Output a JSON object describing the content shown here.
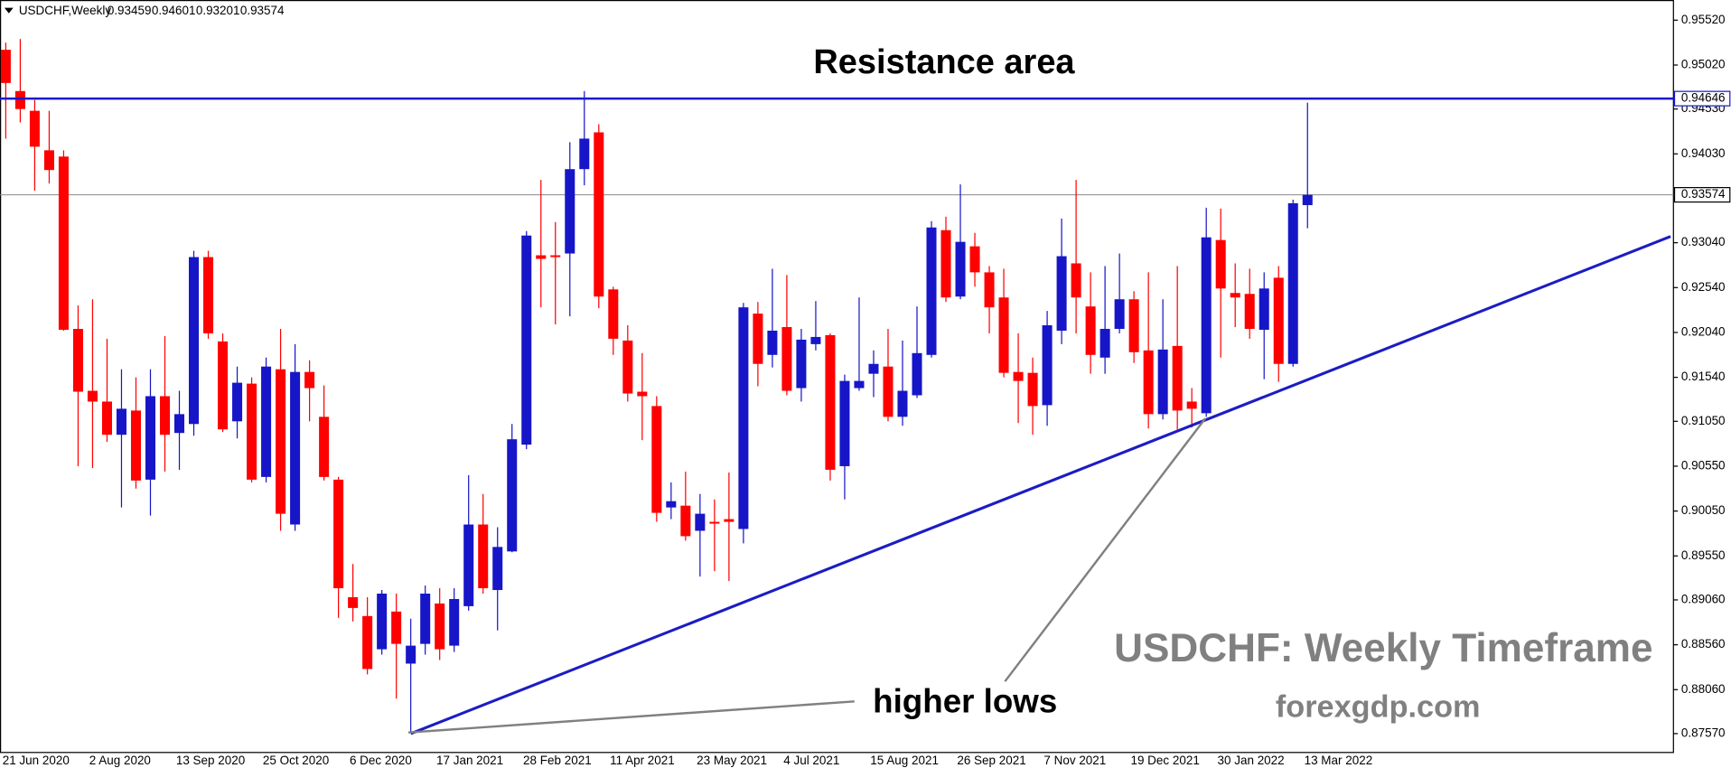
{
  "chart_data": {
    "type": "candlestick",
    "title": "USDCHF,Weekly",
    "categories": [
      "21 Jun 2020",
      null,
      null,
      null,
      null,
      null,
      "2 Aug 2020",
      null,
      null,
      null,
      null,
      null,
      "13 Sep 2020",
      null,
      null,
      null,
      null,
      null,
      "25 Oct 2020",
      null,
      null,
      null,
      null,
      null,
      "6 Dec 2020",
      null,
      null,
      null,
      null,
      null,
      "17 Jan 2021",
      null,
      null,
      null,
      null,
      null,
      "28 Feb 2021",
      null,
      null,
      null,
      null,
      null,
      "11 Apr 2021",
      null,
      null,
      null,
      null,
      null,
      "23 May 2021",
      null,
      null,
      null,
      null,
      null,
      "4 Jul 2021",
      null,
      null,
      null,
      null,
      null,
      "15 Aug 2021",
      null,
      null,
      null,
      null,
      null,
      "26 Sep 2021",
      null,
      null,
      null,
      null,
      null,
      "7 Nov 2021",
      null,
      null,
      null,
      null,
      null,
      "19 Dec 2021",
      null,
      null,
      null,
      null,
      null,
      "30 Jan 2022",
      null,
      null,
      null,
      null,
      null,
      "13 Mar 2022"
    ],
    "open": [
      0.9519,
      0.9473,
      0.9451,
      0.9407,
      0.94,
      0.9208,
      0.9139,
      0.9127,
      0.909,
      0.9117,
      0.904,
      0.9133,
      0.9092,
      0.9102,
      0.9288,
      0.9194,
      0.9105,
      0.9147,
      0.9043,
      0.9163,
      0.899,
      0.916,
      0.911,
      0.904,
      0.8909,
      0.8888,
      0.8851,
      0.8893,
      0.8835,
      0.8857,
      0.8902,
      0.8855,
      0.8899,
      0.899,
      0.8917,
      0.896,
      0.9079,
      0.929,
      0.929,
      0.9292,
      0.9386,
      0.9427,
      0.9252,
      0.9195,
      0.9138,
      0.9122,
      0.9009,
      0.9011,
      0.8983,
      0.8993,
      0.8996,
      0.8985,
      0.9225,
      0.9179,
      0.921,
      0.9142,
      0.9191,
      0.9201,
      0.9055,
      0.9142,
      0.9158,
      0.9166,
      0.911,
      0.9134,
      0.9179,
      0.9318,
      0.9244,
      0.93,
      0.9271,
      0.9243,
      0.916,
      0.9159,
      0.9123,
      0.9206,
      0.9281,
      0.9233,
      0.9176,
      0.9208,
      0.9241,
      0.9184,
      0.9113,
      0.9189,
      0.9127,
      0.9114,
      0.9307,
      0.9248,
      0.9247,
      0.9207,
      0.9265,
      0.9169,
      0.93459
    ],
    "high": [
      0.9527,
      0.9531,
      0.9463,
      0.9451,
      0.9407,
      0.9234,
      0.9241,
      0.9197,
      0.9163,
      0.9154,
      0.9163,
      0.92,
      0.9139,
      0.9295,
      0.9295,
      0.9203,
      0.9166,
      0.9154,
      0.9176,
      0.9208,
      0.9191,
      0.9173,
      0.9145,
      0.9043,
      0.8946,
      0.8909,
      0.8917,
      0.8913,
      0.8885,
      0.8922,
      0.8919,
      0.8919,
      0.9045,
      0.9024,
      0.8987,
      0.9102,
      0.9317,
      0.9374,
      0.9327,
      0.9416,
      0.9473,
      0.9436,
      0.9255,
      0.9212,
      0.9181,
      0.9133,
      0.9037,
      0.9049,
      0.9024,
      0.9018,
      0.9048,
      0.9237,
      0.9238,
      0.9275,
      0.9268,
      0.9208,
      0.9239,
      0.9203,
      0.9157,
      0.9243,
      0.9184,
      0.9208,
      0.9195,
      0.9233,
      0.9328,
      0.9333,
      0.9369,
      0.9315,
      0.9278,
      0.9275,
      0.9203,
      0.9176,
      0.9228,
      0.9331,
      0.9374,
      0.9271,
      0.9278,
      0.9292,
      0.925,
      0.9271,
      0.9241,
      0.9278,
      0.9142,
      0.9343,
      0.9342,
      0.9281,
      0.9275,
      0.9271,
      0.9278,
      0.9352,
      0.94601
    ],
    "low": [
      0.942,
      0.9438,
      0.9362,
      0.937,
      0.9206,
      0.9055,
      0.9053,
      0.9082,
      0.9009,
      0.903,
      0.9,
      0.9049,
      0.9051,
      0.9089,
      0.9197,
      0.9093,
      0.9086,
      0.9037,
      0.9037,
      0.8983,
      0.8983,
      0.9105,
      0.9039,
      0.8886,
      0.8882,
      0.8823,
      0.8845,
      0.8796,
      0.8759,
      0.8845,
      0.8839,
      0.8848,
      0.8894,
      0.8913,
      0.8872,
      0.8959,
      0.9074,
      0.9232,
      0.9213,
      0.9222,
      0.9368,
      0.9231,
      0.9179,
      0.9127,
      0.9084,
      0.8993,
      0.8996,
      0.8972,
      0.8932,
      0.8938,
      0.8927,
      0.8969,
      0.9144,
      0.9165,
      0.9134,
      0.9127,
      0.9184,
      0.9039,
      0.9018,
      0.9139,
      0.9132,
      0.9105,
      0.91,
      0.9131,
      0.9176,
      0.9238,
      0.9241,
      0.9255,
      0.9203,
      0.9154,
      0.9103,
      0.909,
      0.91,
      0.9191,
      0.9203,
      0.9158,
      0.9158,
      0.9203,
      0.917,
      0.9097,
      0.9107,
      0.9096,
      0.9098,
      0.911,
      0.9176,
      0.921,
      0.9197,
      0.9152,
      0.9149,
      0.9166,
      0.93201
    ],
    "close": [
      0.9482,
      0.9453,
      0.9411,
      0.9385,
      0.9207,
      0.9138,
      0.9127,
      0.909,
      0.9119,
      0.9039,
      0.9133,
      0.909,
      0.9113,
      0.9288,
      0.9203,
      0.9096,
      0.9148,
      0.904,
      0.9166,
      0.9002,
      0.916,
      0.9142,
      0.9043,
      0.8919,
      0.8897,
      0.8829,
      0.8913,
      0.8857,
      0.8855,
      0.8913,
      0.8851,
      0.8907,
      0.899,
      0.8919,
      0.8965,
      0.9085,
      0.9312,
      0.9286,
      0.9288,
      0.9386,
      0.942,
      0.9244,
      0.9197,
      0.9136,
      0.9133,
      0.9003,
      0.9016,
      0.8977,
      0.9002,
      0.8991,
      0.8993,
      0.9232,
      0.9169,
      0.9206,
      0.9139,
      0.9196,
      0.9199,
      0.9051,
      0.915,
      0.915,
      0.9169,
      0.911,
      0.9139,
      0.9181,
      0.9321,
      0.9243,
      0.9305,
      0.9271,
      0.9232,
      0.9159,
      0.915,
      0.9122,
      0.9212,
      0.9289,
      0.9243,
      0.9179,
      0.9208,
      0.9241,
      0.9182,
      0.9113,
      0.9185,
      0.9117,
      0.9119,
      0.931,
      0.9253,
      0.9243,
      0.9208,
      0.9253,
      0.9169,
      0.9348,
      0.93574
    ],
    "up_color": "#1616c8",
    "down_color": "#ff0000",
    "xlim": [
      -0.4,
      115.3
    ],
    "ylim": [
      0.8736,
      0.9572
    ],
    "yticks": [
      {
        "value": 0.9552,
        "label": "0.95520"
      },
      {
        "value": 0.9502,
        "label": "0.95020"
      },
      {
        "value": 0.9453,
        "label": "0.94530"
      },
      {
        "value": 0.9403,
        "label": "0.94030"
      },
      {
        "value": 0.9304,
        "label": "0.93040"
      },
      {
        "value": 0.9254,
        "label": "0.92540"
      },
      {
        "value": 0.9204,
        "label": "0.92040"
      },
      {
        "value": 0.9154,
        "label": "0.91540"
      },
      {
        "value": 0.9105,
        "label": "0.91050"
      },
      {
        "value": 0.9055,
        "label": "0.90550"
      },
      {
        "value": 0.9005,
        "label": "0.90050"
      },
      {
        "value": 0.8955,
        "label": "0.89550"
      },
      {
        "value": 0.8906,
        "label": "0.89060"
      },
      {
        "value": 0.8856,
        "label": "0.88560"
      },
      {
        "value": 0.8806,
        "label": "0.88060"
      },
      {
        "value": 0.8757,
        "label": "0.87570"
      }
    ],
    "resistance": {
      "value": 0.94646,
      "color": "#1a1acd"
    },
    "trendline": {
      "x": [
        28,
        115.1
      ],
      "y": [
        0.8757,
        0.9311
      ],
      "color": "#1c1cc4"
    },
    "annotations": [
      "Resistance area",
      "higher lows",
      "USDCHF: Weekly Timeframe",
      "forexgdp.com"
    ]
  }
}
